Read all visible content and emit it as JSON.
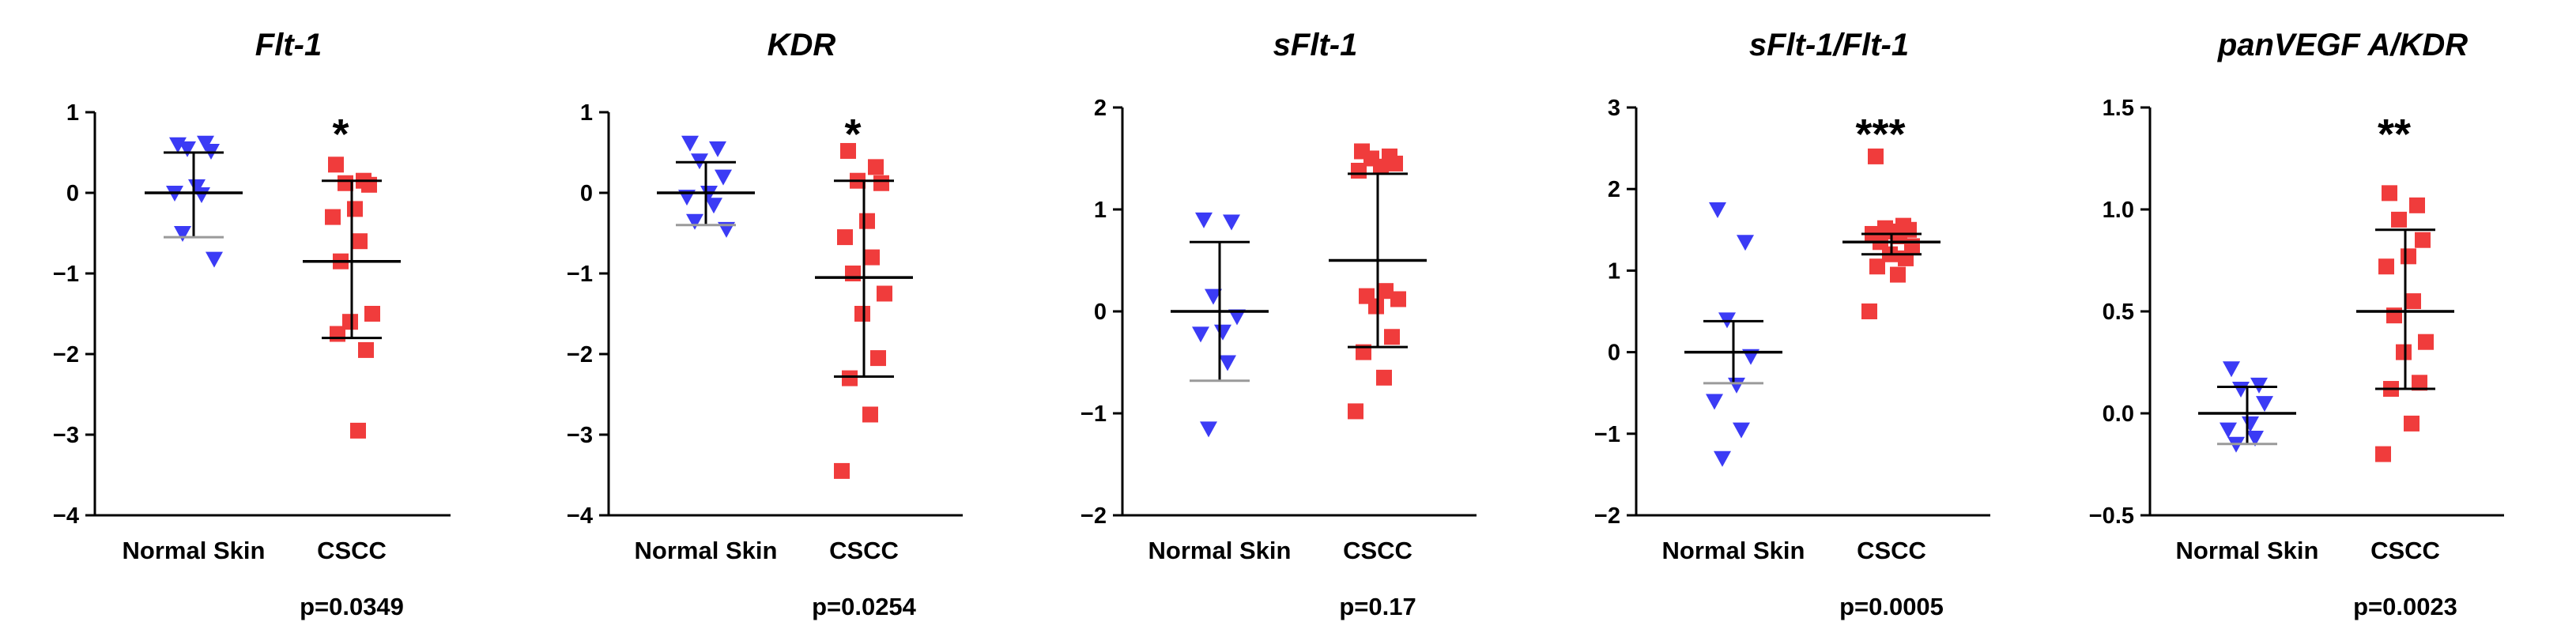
{
  "colors": {
    "normal": "#3b3bf5",
    "cscc": "#f03c3c",
    "axis": "#000000",
    "normal_sd": "#9a9a9a"
  },
  "chart_data": [
    {
      "type": "scatter",
      "title": "Flt-1",
      "categories": [
        "Normal Skin",
        "CSCC"
      ],
      "ylim": [
        -4,
        1
      ],
      "yticks": [
        1,
        0,
        -1,
        -2,
        -3,
        -4
      ],
      "ytick_labels": [
        "1",
        "0",
        "−1",
        "−2",
        "−3",
        "−4"
      ],
      "significance": "*",
      "pvalue": "p=0.0349",
      "series": [
        {
          "name": "Normal Skin",
          "marker": "triangle-down",
          "mean": 0.0,
          "sd_low": -0.55,
          "sd_high": 0.5,
          "values": [
            0.6,
            0.62,
            0.55,
            0.52,
            0.08,
            0.0,
            -0.02,
            -0.5,
            -0.82
          ]
        },
        {
          "name": "CSCC",
          "marker": "square",
          "mean": -0.85,
          "sd_low": -1.8,
          "sd_high": 0.15,
          "values": [
            0.35,
            0.15,
            0.12,
            0.1,
            -0.2,
            -0.3,
            -0.6,
            -0.85,
            -1.5,
            -1.6,
            -1.95,
            -1.75,
            -2.95
          ]
        }
      ]
    },
    {
      "type": "scatter",
      "title": "KDR",
      "categories": [
        "Normal Skin",
        "CSCC"
      ],
      "ylim": [
        -4,
        1
      ],
      "yticks": [
        1,
        0,
        -1,
        -2,
        -3,
        -4
      ],
      "ytick_labels": [
        "1",
        "0",
        "−1",
        "−2",
        "−3",
        "−4"
      ],
      "significance": "*",
      "pvalue": "p=0.0254",
      "series": [
        {
          "name": "Normal Skin",
          "marker": "triangle-down",
          "mean": 0.0,
          "sd_low": -0.4,
          "sd_high": 0.38,
          "values": [
            0.62,
            0.55,
            0.4,
            0.2,
            0.0,
            -0.05,
            -0.15,
            -0.35,
            -0.45
          ]
        },
        {
          "name": "CSCC",
          "marker": "square",
          "mean": -1.05,
          "sd_low": -2.28,
          "sd_high": 0.15,
          "values": [
            0.52,
            0.32,
            0.15,
            0.12,
            -0.35,
            -0.55,
            -0.8,
            -1.0,
            -1.25,
            -1.5,
            -2.05,
            -2.3,
            -2.75,
            -3.45
          ]
        }
      ]
    },
    {
      "type": "scatter",
      "title": "sFlt-1",
      "categories": [
        "Normal Skin",
        "CSCC"
      ],
      "ylim": [
        -2,
        2
      ],
      "yticks": [
        2,
        1,
        0,
        -1,
        -2
      ],
      "ytick_labels": [
        "2",
        "1",
        "0",
        "−1",
        "−2"
      ],
      "significance": "",
      "pvalue": "p=0.17",
      "series": [
        {
          "name": "Normal Skin",
          "marker": "triangle-down",
          "mean": 0.0,
          "sd_low": -0.68,
          "sd_high": 0.68,
          "values": [
            0.9,
            0.88,
            0.15,
            -0.05,
            -0.2,
            -0.22,
            -0.5,
            -1.15
          ]
        },
        {
          "name": "CSCC",
          "marker": "square",
          "mean": 0.5,
          "sd_low": -0.35,
          "sd_high": 1.35,
          "values": [
            1.57,
            1.52,
            1.5,
            1.45,
            1.42,
            1.38,
            0.2,
            0.15,
            0.12,
            0.05,
            -0.25,
            -0.4,
            -0.65,
            -0.98
          ]
        }
      ]
    },
    {
      "type": "scatter",
      "title": "sFlt-1/Flt-1",
      "categories": [
        "Normal Skin",
        "CSCC"
      ],
      "ylim": [
        -2,
        3
      ],
      "yticks": [
        3,
        2,
        1,
        0,
        -1,
        -2
      ],
      "ytick_labels": [
        "3",
        "2",
        "1",
        "0",
        "−1",
        "−2"
      ],
      "significance": "***",
      "pvalue": "p=0.0005",
      "series": [
        {
          "name": "Normal Skin",
          "marker": "triangle-down",
          "mean": 0.0,
          "sd_low": -0.38,
          "sd_high": 0.38,
          "values": [
            1.75,
            1.35,
            0.4,
            -0.05,
            -0.4,
            -0.6,
            -0.95,
            -1.3
          ]
        },
        {
          "name": "CSCC",
          "marker": "square",
          "mean": 1.35,
          "sd_low": 1.2,
          "sd_high": 1.45,
          "values": [
            2.4,
            1.55,
            1.52,
            1.5,
            1.48,
            1.45,
            1.42,
            1.35,
            1.3,
            1.2,
            1.15,
            1.05,
            0.95,
            0.5
          ]
        }
      ]
    },
    {
      "type": "scatter",
      "title": "panVEGF A/KDR",
      "categories": [
        "Normal Skin",
        "CSCC"
      ],
      "ylim": [
        -0.5,
        1.5
      ],
      "yticks": [
        1.5,
        1.0,
        0.5,
        0.0,
        -0.5
      ],
      "ytick_labels": [
        "1.5",
        "1.0",
        "0.5",
        "0.0",
        "−0.5"
      ],
      "significance": "**",
      "pvalue": "p=0.0023",
      "series": [
        {
          "name": "Normal Skin",
          "marker": "triangle-down",
          "mean": 0.0,
          "sd_low": -0.15,
          "sd_high": 0.13,
          "values": [
            0.22,
            0.14,
            0.12,
            0.05,
            -0.05,
            -0.08,
            -0.12,
            -0.15
          ]
        },
        {
          "name": "CSCC",
          "marker": "square",
          "mean": 0.5,
          "sd_low": 0.12,
          "sd_high": 0.9,
          "values": [
            1.08,
            1.02,
            0.95,
            0.85,
            0.77,
            0.72,
            0.55,
            0.48,
            0.35,
            0.3,
            0.15,
            0.12,
            -0.05,
            -0.2
          ]
        }
      ]
    }
  ]
}
